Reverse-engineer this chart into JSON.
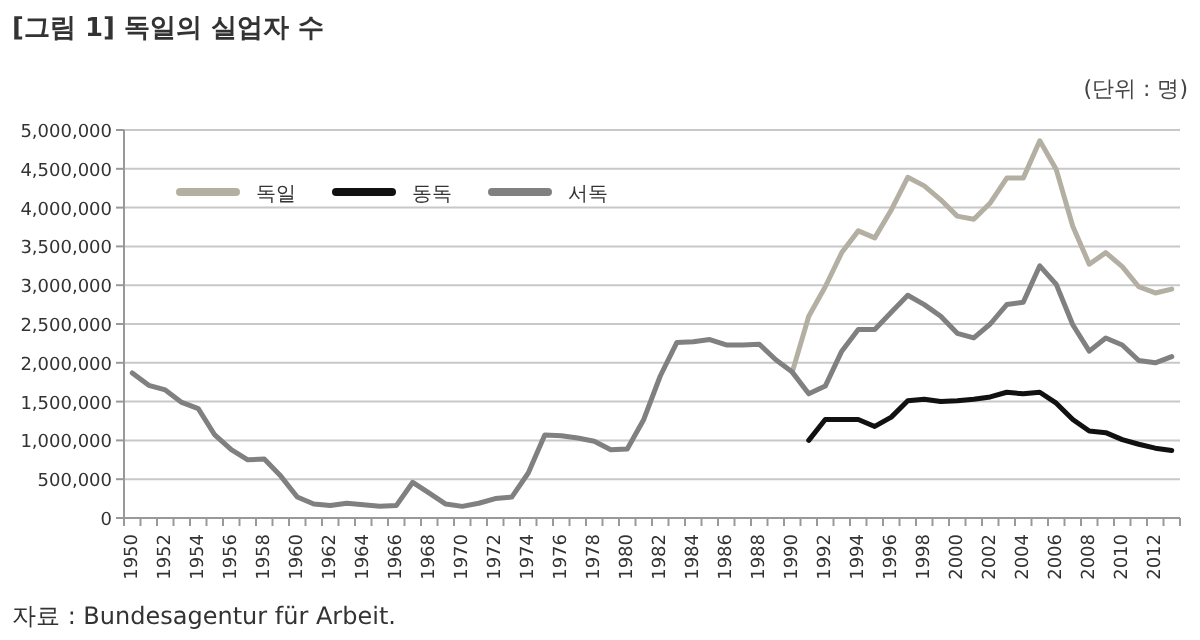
{
  "chart_data": {
    "type": "line",
    "title": "[그림 1] 독일의 실업자 수",
    "annotations": [
      "(단위 : 명)",
      "자료 : Bundesagentur für Arbeit."
    ],
    "categories": [
      "1950",
      null,
      "1952",
      null,
      "1954",
      null,
      "1956",
      null,
      "1958",
      null,
      "1960",
      null,
      "1962",
      null,
      "1964",
      null,
      "1966",
      null,
      "1968",
      null,
      "1970",
      null,
      "1972",
      null,
      "1974",
      null,
      "1976",
      null,
      "1978",
      null,
      "1980",
      null,
      "1982",
      null,
      "1984",
      null,
      "1986",
      null,
      "1988",
      null,
      "1990",
      null,
      "1992",
      null,
      "1994",
      null,
      "1996",
      null,
      "1998",
      null,
      "2000",
      null,
      "2002",
      null,
      "2004",
      null,
      "2006",
      null,
      "2008",
      null,
      "2010",
      null,
      "2012",
      null
    ],
    "series": [
      {
        "name": "독일",
        "color": "#b3b0a3",
        "values": [
          null,
          null,
          null,
          null,
          null,
          null,
          null,
          null,
          null,
          null,
          null,
          null,
          null,
          null,
          null,
          null,
          null,
          null,
          null,
          null,
          null,
          null,
          null,
          null,
          null,
          null,
          null,
          null,
          null,
          null,
          null,
          null,
          null,
          null,
          null,
          null,
          null,
          null,
          null,
          null,
          1880000,
          2600000,
          2980000,
          3420000,
          3700000,
          3610000,
          3970000,
          4390000,
          4280000,
          4100000,
          3890000,
          3850000,
          4060000,
          4380000,
          4380000,
          4860000,
          4490000,
          3760000,
          3270000,
          3420000,
          3240000,
          2980000,
          2900000,
          2950000
        ]
      },
      {
        "name": "동독",
        "color": "#111111",
        "values": [
          null,
          null,
          null,
          null,
          null,
          null,
          null,
          null,
          null,
          null,
          null,
          null,
          null,
          null,
          null,
          null,
          null,
          null,
          null,
          null,
          null,
          null,
          null,
          null,
          null,
          null,
          null,
          null,
          null,
          null,
          null,
          null,
          null,
          null,
          null,
          null,
          null,
          null,
          null,
          null,
          null,
          1000000,
          1270000,
          1270000,
          1270000,
          1180000,
          1300000,
          1510000,
          1530000,
          1500000,
          1510000,
          1530000,
          1560000,
          1620000,
          1600000,
          1620000,
          1480000,
          1270000,
          1120000,
          1100000,
          1010000,
          950000,
          900000,
          870000
        ]
      },
      {
        "name": "서독",
        "color": "#808080",
        "values": [
          1870000,
          1710000,
          1650000,
          1490000,
          1410000,
          1070000,
          880000,
          750000,
          760000,
          540000,
          270000,
          180000,
          160000,
          190000,
          170000,
          150000,
          160000,
          460000,
          320000,
          180000,
          150000,
          190000,
          250000,
          270000,
          580000,
          1070000,
          1060000,
          1030000,
          990000,
          880000,
          890000,
          1270000,
          1830000,
          2260000,
          2270000,
          2300000,
          2230000,
          2230000,
          2240000,
          2040000,
          1880000,
          1600000,
          1700000,
          2150000,
          2430000,
          2430000,
          2650000,
          2870000,
          2750000,
          2600000,
          2380000,
          2320000,
          2500000,
          2750000,
          2780000,
          3250000,
          3010000,
          2490000,
          2150000,
          2320000,
          2230000,
          2030000,
          2000000,
          2080000
        ]
      }
    ],
    "ylim": [
      0,
      5000000
    ],
    "yticks": [
      0,
      {
        "value": 500000,
        "label": "500,000"
      },
      {
        "value": 1000000,
        "label": "1,000,000"
      },
      {
        "value": 1500000,
        "label": "1,500,000"
      },
      {
        "value": 2000000,
        "label": "2,000,000"
      },
      {
        "value": 2500000,
        "label": "2,500,000"
      },
      {
        "value": 3000000,
        "label": "3,000,000"
      },
      {
        "value": 3500000,
        "label": "3,500,000"
      },
      {
        "value": 4000000,
        "label": "4,000,000"
      },
      {
        "value": 4500000,
        "label": "4,500,000"
      },
      {
        "value": 5000000,
        "label": "5,000,000"
      }
    ],
    "grid": "y",
    "legend": "top left"
  }
}
